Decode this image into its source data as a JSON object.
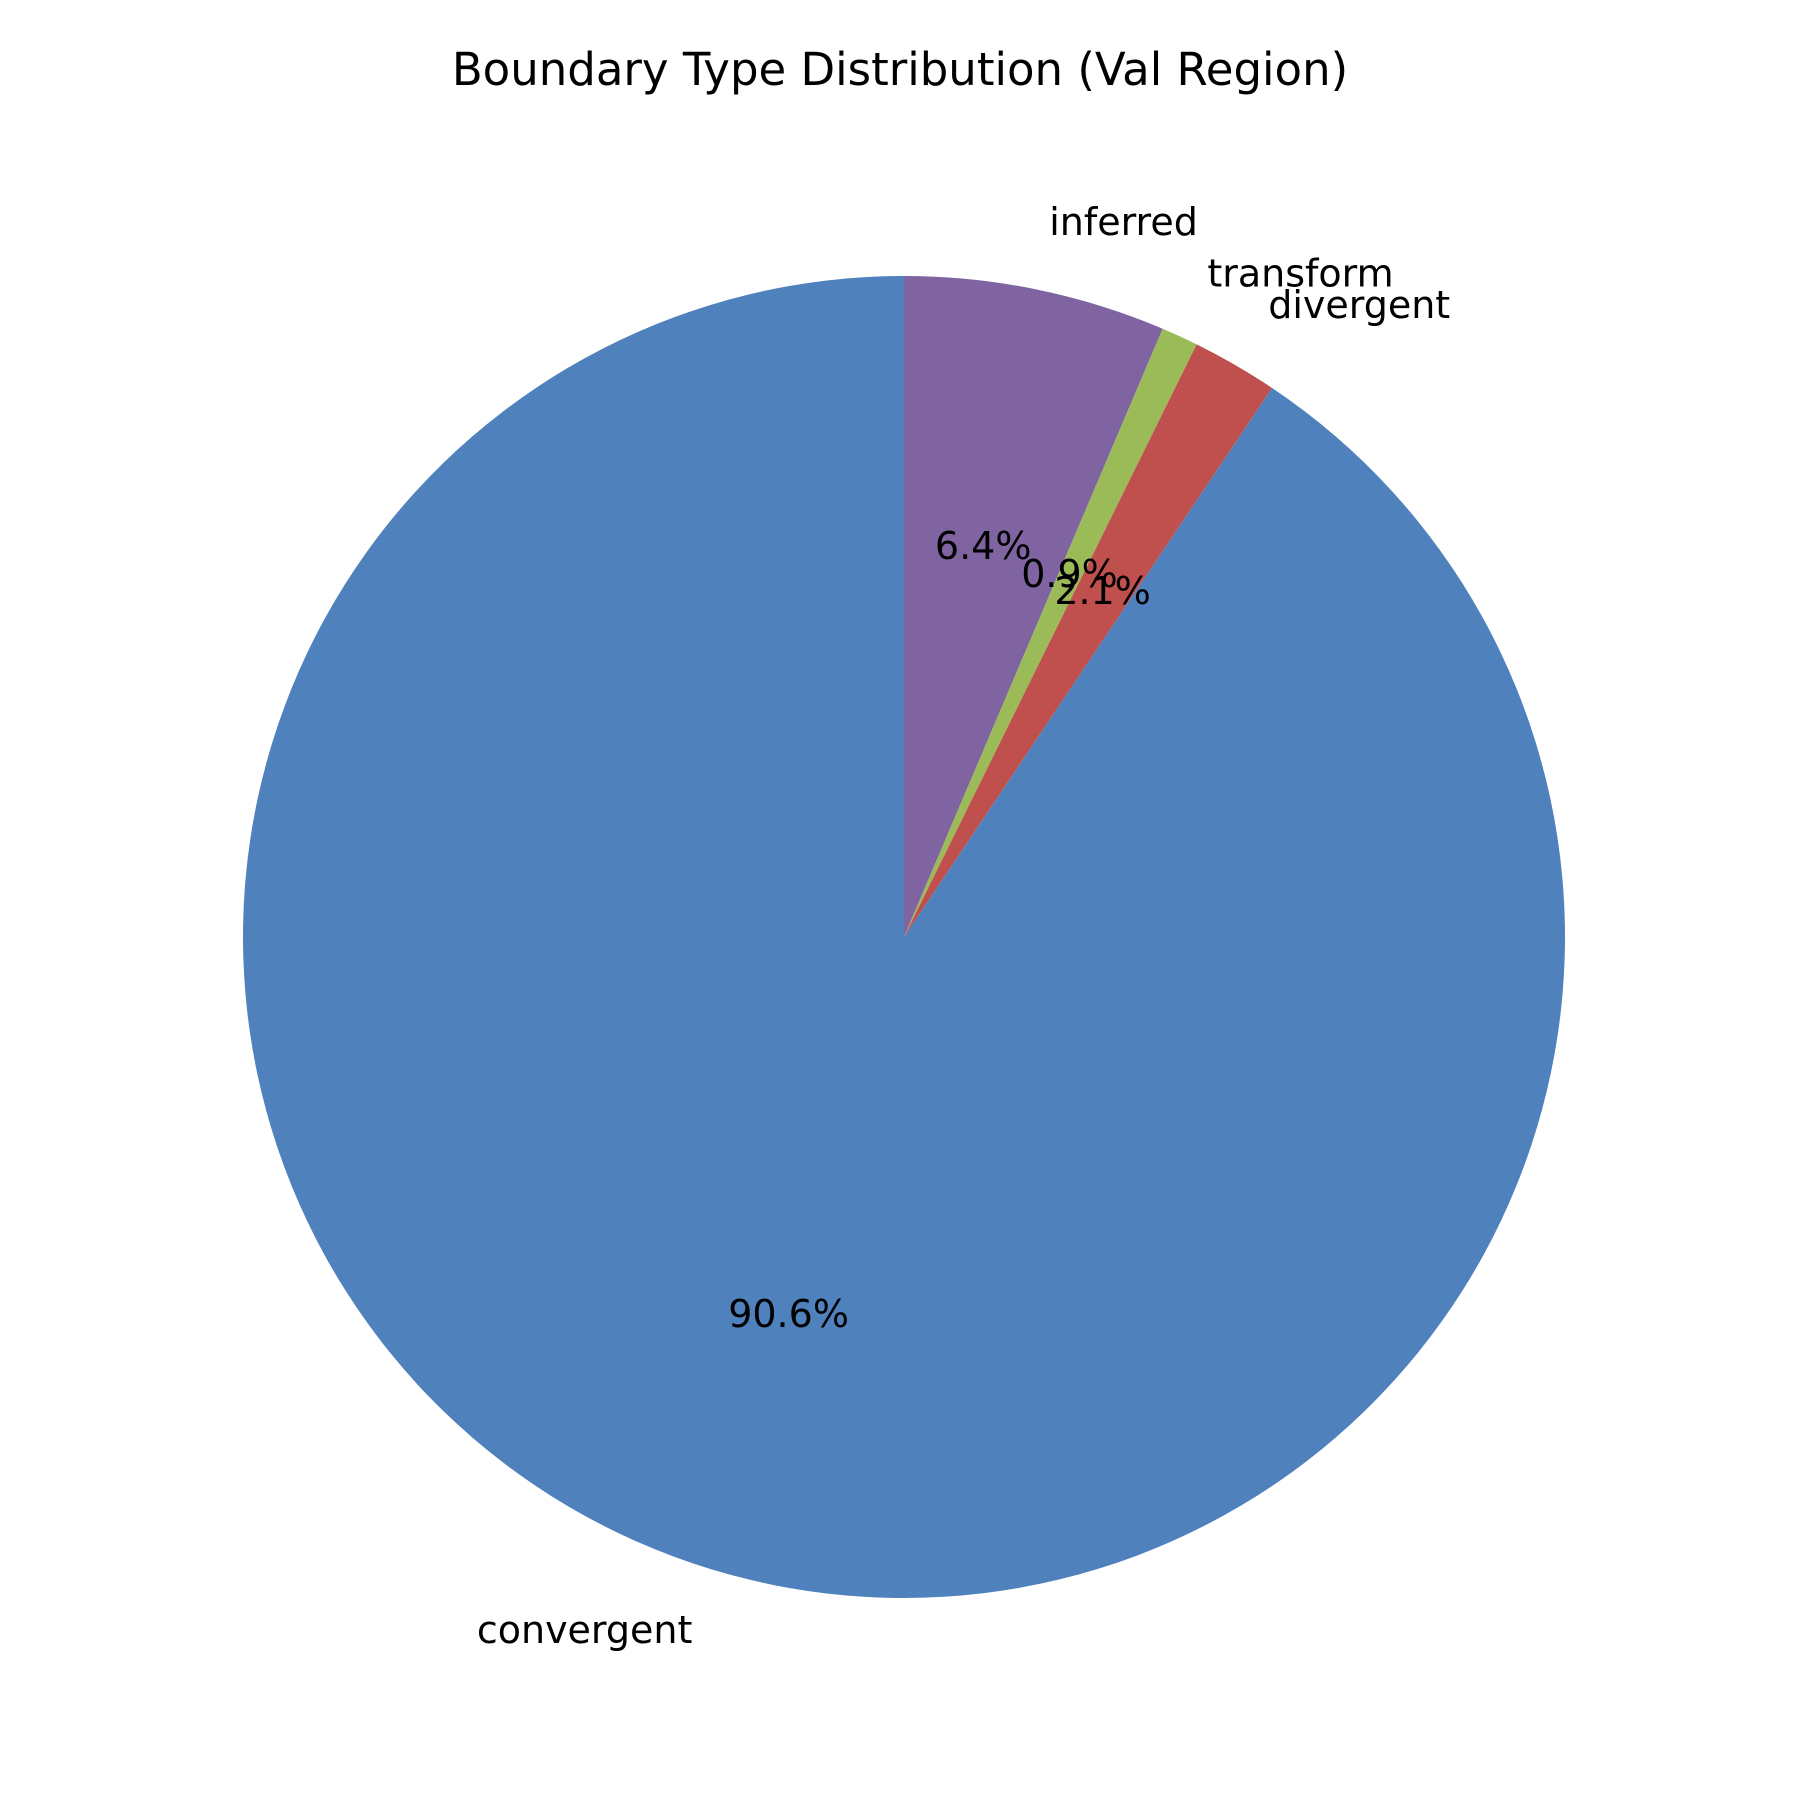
{
  "chart_data": {
    "type": "pie",
    "title": "Boundary Type Distribution (Val Region)",
    "slices": [
      {
        "label": "convergent",
        "value": 90.6,
        "pct_label": "90.6%",
        "color": "#4f81bd"
      },
      {
        "label": "divergent",
        "value": 2.1,
        "pct_label": "2.1%",
        "color": "#c0504d"
      },
      {
        "label": "transform",
        "value": 0.9,
        "pct_label": "0.9%",
        "color": "#9bbb59"
      },
      {
        "label": "inferred",
        "value": 6.4,
        "pct_label": "6.4%",
        "color": "#8064a2"
      }
    ],
    "start_angle_deg": 90,
    "direction": "clockwise",
    "legend": "none"
  }
}
